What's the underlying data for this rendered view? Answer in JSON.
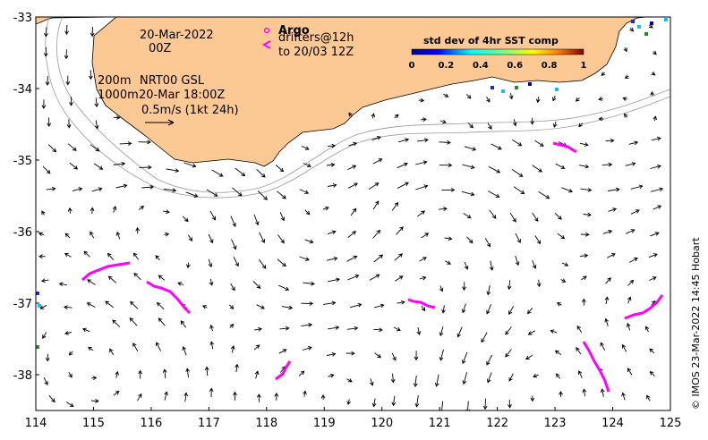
{
  "map": {
    "x_ticks": [
      "114",
      "115",
      "116",
      "117",
      "118",
      "119",
      "120",
      "121",
      "122",
      "123",
      "124",
      "125"
    ],
    "y_ticks": [
      "-33",
      "-34",
      "-35",
      "-36",
      "-37",
      "-38"
    ],
    "lon_range": [
      114,
      125
    ],
    "lat_range": [
      -38.5,
      -33
    ],
    "land_color": "#fcc894",
    "coast_color": "#000000",
    "contour_color": "#9a9a9a",
    "drifter_color": "#ff00ff"
  },
  "annotations": {
    "date": "20-Mar-2022",
    "time": "00Z",
    "depth1": "200m",
    "depth2": "1000m",
    "product": "NRT00 GSL",
    "product_time": "20-Mar 18:00Z",
    "scale_label": "0.5m/s (1kt 24h)"
  },
  "legend": {
    "argo_label": "Argo",
    "drifter_label1": "drifters@12h",
    "drifter_label2": "to 20/03 12Z",
    "argo_symbol": "o",
    "drifter_symbol": "<"
  },
  "colorbar": {
    "title": "std dev of 4hr SST comp",
    "ticks": [
      "0",
      "0.2",
      "0.4",
      "0.6",
      "0.8",
      "1"
    ]
  },
  "credit": "© IMOS 23-Mar-2022 14:45 Hobart"
}
